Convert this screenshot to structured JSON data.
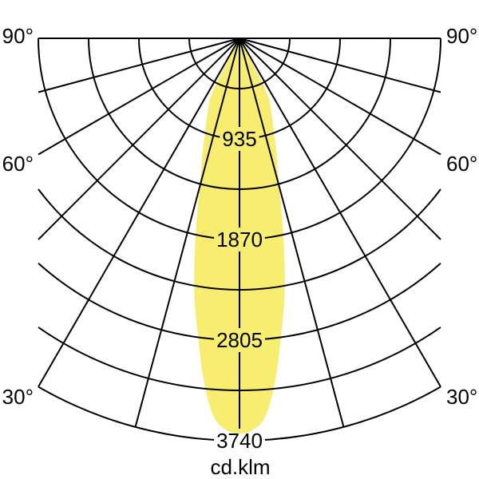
{
  "diagram": {
    "unit_label": "cd.klm",
    "angle_tick_labels": [
      "90°",
      "60°",
      "30°"
    ],
    "ring_value_labels": [
      "935",
      "1870",
      "2805",
      "3740"
    ]
  },
  "colors": {
    "background": "#FFFFFF",
    "beam_fill": "#F6ED71",
    "grid_line": "#000000",
    "text": "#000000"
  },
  "chart_data": {
    "type": "polar_intensity_distribution",
    "unit": "cd.klm",
    "title": "",
    "ring_step_cd": 467.5,
    "rings_cd": [
      467.5,
      935,
      1402.5,
      1870,
      2337.5,
      2805,
      3272.5,
      3740
    ],
    "labeled_rings_cd": [
      935,
      1870,
      2805,
      3740
    ],
    "spoke_angles_deg": [
      -90,
      -75,
      -60,
      -45,
      -30,
      -15,
      0,
      15,
      30,
      45,
      60,
      75,
      90
    ],
    "labeled_angles_deg": [
      90,
      60,
      30
    ],
    "peak_intensity_cd_per_klm": 3673,
    "beam_cutoff_half_angle_deg": 27.6,
    "beam_profile_deg_cd": [
      [
        0,
        3673
      ],
      [
        2,
        3640
      ],
      [
        4,
        3515
      ],
      [
        6,
        3190
      ],
      [
        8,
        2780
      ],
      [
        10,
        2415
      ],
      [
        12,
        1990
      ],
      [
        14,
        1595
      ],
      [
        16,
        1295
      ],
      [
        18,
        1110
      ],
      [
        20,
        930
      ],
      [
        22,
        820
      ],
      [
        24,
        712
      ],
      [
        26,
        615
      ],
      [
        27,
        430
      ],
      [
        27.6,
        0
      ]
    ]
  }
}
